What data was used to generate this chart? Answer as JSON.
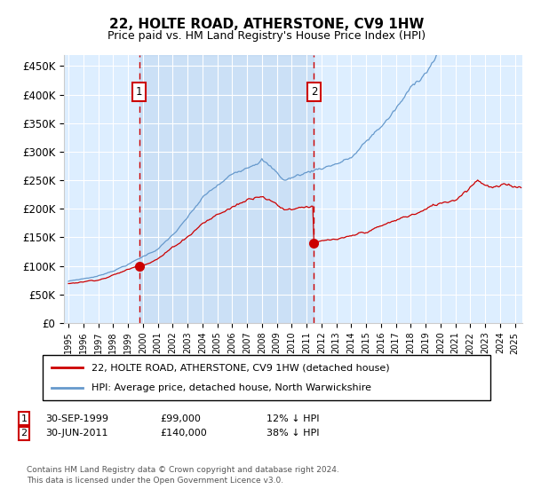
{
  "title": "22, HOLTE ROAD, ATHERSTONE, CV9 1HW",
  "subtitle": "Price paid vs. HM Land Registry's House Price Index (HPI)",
  "xlim": [
    1994.7,
    2025.5
  ],
  "ylim": [
    0,
    470000
  ],
  "yticks": [
    0,
    50000,
    100000,
    150000,
    200000,
    250000,
    300000,
    350000,
    400000,
    450000
  ],
  "ytick_labels": [
    "£0",
    "£50K",
    "£100K",
    "£150K",
    "£200K",
    "£250K",
    "£300K",
    "£350K",
    "£400K",
    "£450K"
  ],
  "sale1_x": 1999.75,
  "sale1_y": 99000,
  "sale2_x": 2011.5,
  "sale2_y": 140000,
  "line1_label": "22, HOLTE ROAD, ATHERSTONE, CV9 1HW (detached house)",
  "line2_label": "HPI: Average price, detached house, North Warwickshire",
  "sale1_date": "30-SEP-1999",
  "sale1_price": "£99,000",
  "sale1_hpi": "12% ↓ HPI",
  "sale2_date": "30-JUN-2011",
  "sale2_price": "£140,000",
  "sale2_hpi": "38% ↓ HPI",
  "footnote": "Contains HM Land Registry data © Crown copyright and database right 2024.\nThis data is licensed under the Open Government Licence v3.0.",
  "red_color": "#cc0000",
  "blue_color": "#6699cc",
  "bg_color": "#ddeeff",
  "shade_color": "#c8ddf0",
  "grid_color": "#ffffff"
}
